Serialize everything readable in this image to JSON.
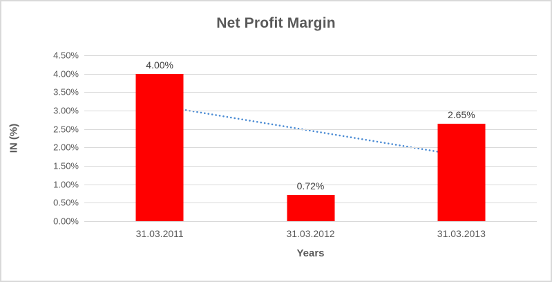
{
  "window": {
    "background_color": "#ffffff",
    "border_color": "#d9d9d9"
  },
  "chart_data": {
    "type": "bar",
    "title": "Net Profit Margin",
    "xlabel": "Years",
    "ylabel": "IN (%)",
    "categories": [
      "31.03.2011",
      "31.03.2012",
      "31.03.2013"
    ],
    "values": [
      4.0,
      0.72,
      2.65
    ],
    "data_labels": [
      "4.00%",
      "0.72%",
      "2.65%"
    ],
    "ylim": [
      0,
      4.5
    ],
    "ytick_step": 0.5,
    "ytick_labels_bottom_to_top": [
      "0.00%",
      "0.50%",
      "1.00%",
      "1.50%",
      "2.00%",
      "2.50%",
      "3.00%",
      "3.50%",
      "4.00%",
      "4.50%"
    ],
    "grid": true,
    "legend": "none",
    "bar_color": "#ff0000",
    "gridline_color": "#d9d9d9",
    "title_color": "#595959",
    "tick_color": "#595959",
    "data_label_color": "#404040",
    "trendline": {
      "type": "linear",
      "style": "dotted",
      "color": "#4a8bd4",
      "start_value": 3.13,
      "end_value": 1.78
    }
  }
}
